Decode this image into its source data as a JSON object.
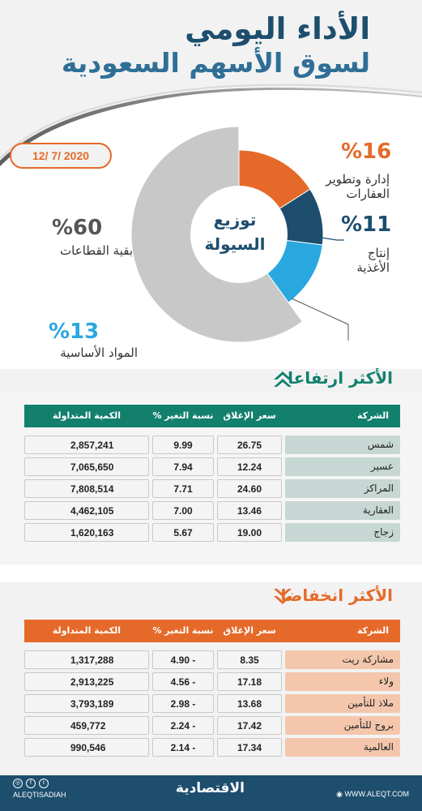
{
  "header": {
    "title_line1": "الأداء اليومي",
    "title_line2": "لسوق الأسهم السعودية",
    "date": "12/ 7/ 2020"
  },
  "colors": {
    "navy": "#1d4e6e",
    "orange": "#e56a2a",
    "sky": "#29a8e0",
    "grey": "#c8c8c8",
    "teal": "#13806e"
  },
  "chart_data": {
    "type": "pie",
    "title": "توزيع السيولة",
    "center_line1": "توزيع",
    "center_line2": "السيولة",
    "slices": [
      {
        "label_line1": "إدارة وتطوير",
        "label_line2": "العقارات",
        "pct_text": "%16",
        "value": 16,
        "color": "#e56a2a"
      },
      {
        "label_line1": "إنتاج",
        "label_line2": "الأغذية",
        "pct_text": "%11",
        "value": 11,
        "color": "#1d4e6e"
      },
      {
        "label_line1": "المواد الأساسية",
        "label_line2": "",
        "pct_text": "%13",
        "value": 13,
        "color": "#29a8e0"
      },
      {
        "label_line1": "بقية القطاعات",
        "label_line2": "",
        "pct_text": "%60",
        "value": 60,
        "color": "#c8c8c8"
      }
    ]
  },
  "gainers": {
    "title": "الأكثر ارتفاعا",
    "headers": {
      "company": "الشركة",
      "close": "سعر الإغلاق",
      "change": "نسبة التغير %",
      "volume": "الكمية المتداولة"
    },
    "rows": [
      {
        "company": "شمس",
        "close": "26.75",
        "change": "9.99",
        "volume": "2,857,241"
      },
      {
        "company": "عسير",
        "close": "12.24",
        "change": "7.94",
        "volume": "7,065,650"
      },
      {
        "company": "المراكز",
        "close": "24.60",
        "change": "7.71",
        "volume": "7,808,514"
      },
      {
        "company": "العقارية",
        "close": "13.46",
        "change": "7.00",
        "volume": "4,462,105"
      },
      {
        "company": "زجاج",
        "close": "19.00",
        "change": "5.67",
        "volume": "1,620,163"
      }
    ]
  },
  "losers": {
    "title": "الأكثر انخفاضا",
    "headers": {
      "company": "الشركة",
      "close": "سعر الإغلاق",
      "change": "نسبة التغير %",
      "volume": "الكمية المتداولة"
    },
    "rows": [
      {
        "company": "مشاركة ريت",
        "close": "8.35",
        "change": "4.90 -",
        "volume": "1,317,288"
      },
      {
        "company": "ولاء",
        "close": "17.18",
        "change": "4.56 -",
        "volume": "2,913,225"
      },
      {
        "company": "ملاذ للتأمين",
        "close": "13.68",
        "change": "2.98 -",
        "volume": "3,793,189"
      },
      {
        "company": "بروج للتأمين",
        "close": "17.42",
        "change": "2.24 -",
        "volume": "459,772"
      },
      {
        "company": "العالمية",
        "close": "17.34",
        "change": "2.14 -",
        "volume": "990,546"
      }
    ]
  },
  "footer": {
    "handle": "ALEQTISADIAH",
    "logo_text": "الاقتصادية",
    "website": "WWW.ALEQT.COM",
    "social_icons": [
      "instagram-icon",
      "facebook-icon",
      "twitter-icon"
    ]
  }
}
